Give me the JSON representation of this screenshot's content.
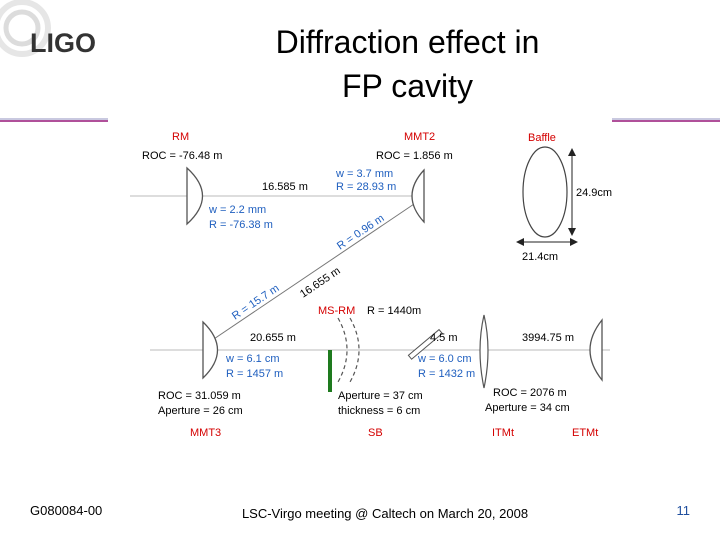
{
  "logo": {
    "text": "LIGO"
  },
  "title": {
    "line1": "Diffraction effect in",
    "line2": "FP cavity"
  },
  "footer": {
    "doc_id": "G080084-00",
    "meeting": "LSC-Virgo meeting @ Caltech on March 20, 2008",
    "page": "11"
  },
  "colors": {
    "accent_red": "#d40000",
    "accent_blue": "#1f5fbf",
    "header_rule": "#b0509a",
    "sb_green": "#1e7a1e"
  },
  "diagram": {
    "rm": {
      "name": "RM",
      "roc": "ROC = -76.48 m"
    },
    "mmt2": {
      "name": "MMT2",
      "roc": "ROC = 1.856 m"
    },
    "baffle": {
      "name": "Baffle",
      "height": "24.9cm",
      "width": "21.4cm"
    },
    "rm_mmt2_dist": "16.585 m",
    "beam_mmt2": {
      "w": "w = 3.7 mm",
      "r": "R = 28.93 m"
    },
    "beam_rm": {
      "w": "w = 2.2 mm",
      "r": "R = -76.38 m"
    },
    "diag_r1": "R = 0.96 m",
    "diag_dist": "16.655 m",
    "diag_r2": "R = 15.7 m",
    "msrm": {
      "name": "MS-RM",
      "r": "R = 1440m"
    },
    "mmt3_dist": "20.655 m",
    "sb_itm_dist": "4.5 m",
    "arm_length": "3994.75 m",
    "beam_mmt3": {
      "w": "w = 6.1 cm",
      "r": "R = 1457 m"
    },
    "beam_itm": {
      "w": "w = 6.0 cm",
      "r": "R = 1432 m"
    },
    "mmt3": {
      "name": "MMT3",
      "roc": "ROC = 31.059 m",
      "aperture": "Aperture = 26 cm"
    },
    "sb": {
      "name": "SB",
      "aperture": "Aperture = 37 cm",
      "thickness": "thickness = 6 cm"
    },
    "etm": {
      "roc": "ROC = 2076 m",
      "aperture": "Aperture = 34 cm"
    },
    "itmt": {
      "name": "ITMt"
    },
    "etmt": {
      "name": "ETMt"
    }
  }
}
